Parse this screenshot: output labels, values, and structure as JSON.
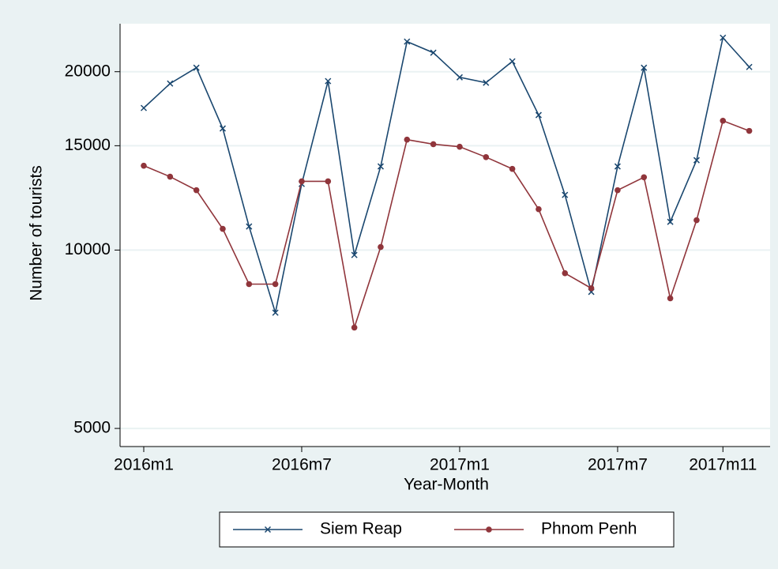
{
  "chart_data": {
    "type": "line",
    "categories": [
      "2016m1",
      null,
      null,
      null,
      null,
      null,
      "2016m7",
      null,
      null,
      null,
      null,
      null,
      "2017m1",
      null,
      null,
      null,
      null,
      null,
      "2017m7",
      null,
      null,
      null,
      "2017m11",
      null
    ],
    "series": [
      {
        "name": "Siem Reap",
        "color": "#1a476f",
        "marker": "x",
        "values": [
          17370,
          19100,
          20310,
          16040,
          10960,
          7840,
          12930,
          19280,
          9810,
          13840,
          22480,
          21530,
          19570,
          19160,
          20820,
          16900,
          12390,
          8500,
          13840,
          20310,
          11160,
          14180,
          22820,
          20370
        ]
      },
      {
        "name": "Phnom Penh",
        "color": "#90353b",
        "marker": "circle",
        "values": [
          13880,
          13300,
          12620,
          10860,
          8760,
          8760,
          13060,
          13060,
          7400,
          10120,
          15360,
          15090,
          14940,
          14350,
          13710,
          11720,
          9140,
          8620,
          12620,
          13270,
          8290,
          11230,
          16530,
          15890
        ]
      }
    ],
    "y_label": "Number of tourists",
    "x_label": "Year-Month",
    "ylim": [
      4660,
      24100
    ],
    "yticks": [
      5000,
      10000,
      15000,
      20000
    ],
    "log_y": true,
    "grid": true,
    "legend_position": "bottom"
  }
}
